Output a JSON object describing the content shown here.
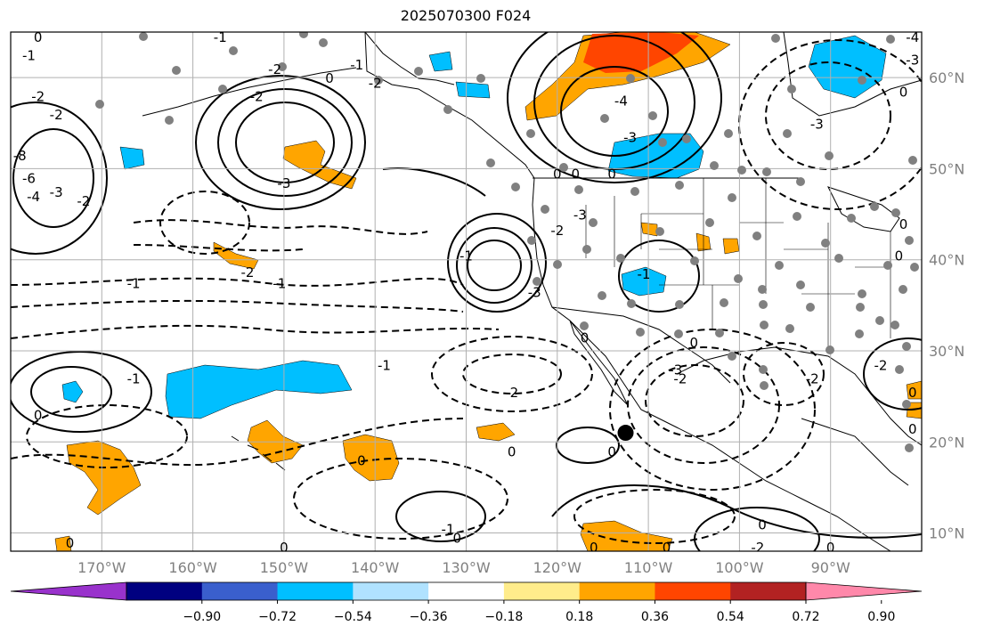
{
  "title": "2025070300 F024",
  "map": {
    "lon_range": [
      -180,
      -80
    ],
    "lat_range": [
      8,
      65
    ],
    "lon_ticks": [
      {
        "value": -170,
        "label": "170°W"
      },
      {
        "value": -160,
        "label": "160°W"
      },
      {
        "value": -150,
        "label": "150°W"
      },
      {
        "value": -140,
        "label": "140°W"
      },
      {
        "value": -130,
        "label": "130°W"
      },
      {
        "value": -120,
        "label": "120°W"
      },
      {
        "value": -110,
        "label": "110°W"
      },
      {
        "value": -100,
        "label": "100°W"
      },
      {
        "value": -90,
        "label": "90°W"
      }
    ],
    "lat_ticks": [
      {
        "value": 10,
        "label": "10°N"
      },
      {
        "value": 20,
        "label": "20°N"
      },
      {
        "value": 30,
        "label": "30°N"
      },
      {
        "value": 40,
        "label": "40°N"
      },
      {
        "value": 50,
        "label": "50°N"
      },
      {
        "value": 60,
        "label": "60°N"
      }
    ],
    "grid": true,
    "contour_labels": [
      {
        "text": "-2",
        "lon": -172,
        "lat": 46.5
      },
      {
        "text": "-1",
        "lon": -166.5,
        "lat": 37.5
      },
      {
        "text": "-1",
        "lon": -150.5,
        "lat": 37.5
      },
      {
        "text": "-2",
        "lon": -154,
        "lat": 38.7
      },
      {
        "text": "-1",
        "lon": -139,
        "lat": 28.5
      },
      {
        "text": "-2",
        "lon": -125,
        "lat": 25.5
      },
      {
        "text": "-2",
        "lon": -120,
        "lat": 43.3
      },
      {
        "text": "-1",
        "lon": -130,
        "lat": 40.5
      },
      {
        "text": "-3",
        "lon": -122.5,
        "lat": 36.5
      },
      {
        "text": "-3",
        "lon": -150,
        "lat": 48.5
      },
      {
        "text": "-2",
        "lon": -153,
        "lat": 58
      },
      {
        "text": "-1",
        "lon": -166.5,
        "lat": 27
      },
      {
        "text": "0",
        "lon": -177,
        "lat": 23
      },
      {
        "text": "0",
        "lon": -173.5,
        "lat": 9
      },
      {
        "text": "-1",
        "lon": -132,
        "lat": 10.5
      },
      {
        "text": "0",
        "lon": -131,
        "lat": 9.5
      },
      {
        "text": "0",
        "lon": -116,
        "lat": 8.5
      },
      {
        "text": "0",
        "lon": -108,
        "lat": 8.5
      },
      {
        "text": "0",
        "lon": -97.5,
        "lat": 11
      },
      {
        "text": "-2",
        "lon": -98,
        "lat": 8.5
      },
      {
        "text": "0",
        "lon": -90,
        "lat": 8.5
      },
      {
        "text": "0",
        "lon": -105,
        "lat": 31
      },
      {
        "text": "-2",
        "lon": -106.5,
        "lat": 27
      },
      {
        "text": "-4",
        "lon": -113,
        "lat": 57.5
      },
      {
        "text": "-3",
        "lon": -112,
        "lat": 53.5
      },
      {
        "text": "-3",
        "lon": -117.5,
        "lat": 45
      },
      {
        "text": "-1",
        "lon": -110.5,
        "lat": 38.5
      },
      {
        "text": "-2",
        "lon": -84.5,
        "lat": 28.5
      },
      {
        "text": "0",
        "lon": -114,
        "lat": 19
      },
      {
        "text": "0",
        "lon": -125,
        "lat": 19
      },
      {
        "text": "0",
        "lon": -141.5,
        "lat": 18
      },
      {
        "text": "-3",
        "lon": -91.5,
        "lat": 55
      },
      {
        "text": "0",
        "lon": -150,
        "lat": 8.5
      },
      {
        "text": "-2",
        "lon": -151,
        "lat": 61
      },
      {
        "text": "0",
        "lon": -177,
        "lat": 64.5
      },
      {
        "text": "-1",
        "lon": -157,
        "lat": 64.5
      },
      {
        "text": "-2",
        "lon": -140,
        "lat": 59.5
      },
      {
        "text": "-1",
        "lon": -142,
        "lat": 61.5
      },
      {
        "text": "0",
        "lon": -145,
        "lat": 60
      },
      {
        "text": "-2",
        "lon": -177,
        "lat": 58
      },
      {
        "text": "-1",
        "lon": -178,
        "lat": 62.5
      },
      {
        "text": "-2",
        "lon": -175,
        "lat": 56
      },
      {
        "text": "-3",
        "lon": -175,
        "lat": 47.5
      },
      {
        "text": "-4",
        "lon": -177.5,
        "lat": 47
      },
      {
        "text": "-6",
        "lon": -178,
        "lat": 49
      },
      {
        "text": "-8",
        "lon": -179,
        "lat": 51.5
      },
      {
        "text": "0",
        "lon": -120,
        "lat": 49.5
      },
      {
        "text": "0",
        "lon": -118,
        "lat": 49.5
      },
      {
        "text": "0",
        "lon": -114,
        "lat": 49.5
      },
      {
        "text": "-4",
        "lon": -81,
        "lat": 64.5
      },
      {
        "text": "-3",
        "lon": -81,
        "lat": 62
      },
      {
        "text": "0",
        "lon": -82,
        "lat": 58.5
      },
      {
        "text": "0",
        "lon": -81,
        "lat": 21.5
      },
      {
        "text": "0",
        "lon": -81,
        "lat": 25.5
      },
      {
        "text": "0",
        "lon": -82.5,
        "lat": 40.5
      },
      {
        "text": "0",
        "lon": -82,
        "lat": 44
      },
      {
        "text": "-2",
        "lon": -92,
        "lat": 27
      },
      {
        "text": "-3",
        "lon": -107,
        "lat": 28
      },
      {
        "text": "0",
        "lon": -117,
        "lat": 31.5
      }
    ],
    "station_dot_color": "#808080",
    "storm_marker": {
      "lon": -112.5,
      "lat": 21
    }
  },
  "colorbar": {
    "ticks": [
      "−0.90",
      "−0.72",
      "−0.54",
      "−0.36",
      "−0.18",
      "0.18",
      "0.36",
      "0.54",
      "0.72",
      "0.90"
    ],
    "colors": [
      "#9932cc",
      "#000080",
      "#3a5fcd",
      "#00bfff",
      "#b0e2ff",
      "#ffffff",
      "#ffec8b",
      "#ffa500",
      "#ff4500",
      "#b22222",
      "#ff88aa"
    ]
  },
  "colors": {
    "positive_orange": "#ffa500",
    "positive_red": "#ff4500",
    "positive_yellow": "#ffec8b",
    "negative_blue": "#00bfff",
    "contour": "#000000",
    "grid": "#b0b0b0"
  }
}
